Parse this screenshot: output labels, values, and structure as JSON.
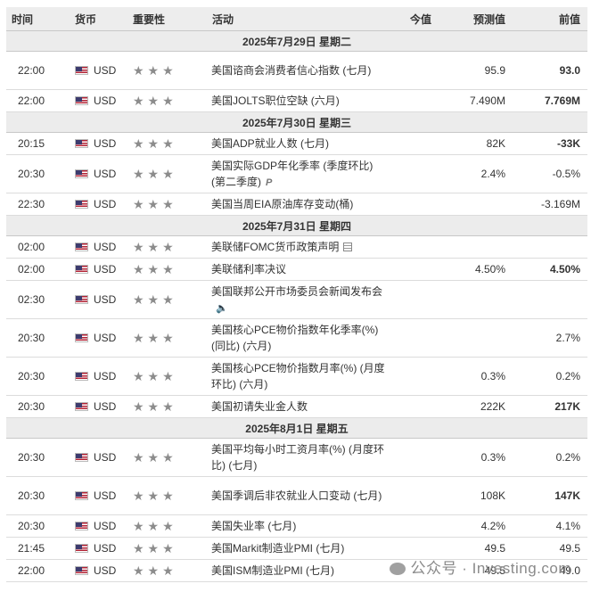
{
  "columns": {
    "time": "时间",
    "currency": "货币",
    "importance": "重要性",
    "event": "活动",
    "actual": "今值",
    "forecast": "预测值",
    "previous": "前值"
  },
  "days": [
    {
      "date": "2025年7月29日  星期二",
      "events": [
        {
          "time": "22:00",
          "currency": "USD",
          "event": "美国谘商会消费者信心指数 (七月)",
          "actual": "",
          "forecast": "95.9",
          "previous": "93.0",
          "previous_bold": true,
          "icon": ""
        },
        {
          "time": "22:00",
          "currency": "USD",
          "event": "美国JOLTS职位空缺 (六月)",
          "actual": "",
          "forecast": "7.490M",
          "previous": "7.769M",
          "previous_bold": true,
          "icon": ""
        }
      ]
    },
    {
      "date": "2025年7月30日  星期三",
      "events": [
        {
          "time": "20:15",
          "currency": "USD",
          "event": "美国ADP就业人数 (七月)",
          "actual": "",
          "forecast": "82K",
          "previous": "-33K",
          "previous_bold": true,
          "icon": ""
        },
        {
          "time": "20:30",
          "currency": "USD",
          "event": "美国实际GDP年化季率 (季度环比) (第二季度)",
          "actual": "",
          "forecast": "2.4%",
          "previous": "-0.5%",
          "previous_bold": false,
          "icon": "preliminary-icon"
        },
        {
          "time": "22:30",
          "currency": "USD",
          "event": "美国当周EIA原油库存变动(桶)",
          "actual": "",
          "forecast": "",
          "previous": "-3.169M",
          "previous_bold": false,
          "icon": ""
        }
      ]
    },
    {
      "date": "2025年7月31日  星期四",
      "events": [
        {
          "time": "02:00",
          "currency": "USD",
          "event": "美联储FOMC货币政策声明",
          "actual": "",
          "forecast": "",
          "previous": "",
          "previous_bold": false,
          "icon": "document-icon"
        },
        {
          "time": "02:00",
          "currency": "USD",
          "event": "美联储利率决议",
          "actual": "",
          "forecast": "4.50%",
          "previous": "4.50%",
          "previous_bold": true,
          "icon": ""
        },
        {
          "time": "02:30",
          "currency": "USD",
          "event": "美国联邦公开市场委员会新闻发布会",
          "actual": "",
          "forecast": "",
          "previous": "",
          "previous_bold": false,
          "icon": "speaker-icon"
        },
        {
          "time": "20:30",
          "currency": "USD",
          "event": "美国核心PCE物价指数年化季率(%) (同比) (六月)",
          "actual": "",
          "forecast": "",
          "previous": "2.7%",
          "previous_bold": false,
          "icon": ""
        },
        {
          "time": "20:30",
          "currency": "USD",
          "event": "美国核心PCE物价指数月率(%) (月度环比) (六月)",
          "actual": "",
          "forecast": "0.3%",
          "previous": "0.2%",
          "previous_bold": false,
          "icon": ""
        },
        {
          "time": "20:30",
          "currency": "USD",
          "event": "美国初请失业金人数",
          "actual": "",
          "forecast": "222K",
          "previous": "217K",
          "previous_bold": true,
          "icon": ""
        }
      ]
    },
    {
      "date": "2025年8月1日  星期五",
      "events": [
        {
          "time": "20:30",
          "currency": "USD",
          "event": "美国平均每小时工资月率(%) (月度环比) (七月)",
          "actual": "",
          "forecast": "0.3%",
          "previous": "0.2%",
          "previous_bold": false,
          "icon": ""
        },
        {
          "time": "20:30",
          "currency": "USD",
          "event": "美国季调后非农就业人口变动 (七月)",
          "actual": "",
          "forecast": "108K",
          "previous": "147K",
          "previous_bold": true,
          "icon": ""
        },
        {
          "time": "20:30",
          "currency": "USD",
          "event": "美国失业率 (七月)",
          "actual": "",
          "forecast": "4.2%",
          "previous": "4.1%",
          "previous_bold": false,
          "icon": ""
        },
        {
          "time": "21:45",
          "currency": "USD",
          "event": "美国Markit制造业PMI (七月)",
          "actual": "",
          "forecast": "49.5",
          "previous": "49.5",
          "previous_bold": false,
          "icon": ""
        },
        {
          "time": "22:00",
          "currency": "USD",
          "event": "美国ISM制造业PMI (七月)",
          "actual": "",
          "forecast": "49.5",
          "previous": "49.0",
          "previous_bold": false,
          "icon": ""
        }
      ]
    }
  ],
  "importance_stars": 3,
  "watermark": "公众号 · Investing.com",
  "colors": {
    "header_bg": "#ededed",
    "star": "#8c8c8c"
  }
}
